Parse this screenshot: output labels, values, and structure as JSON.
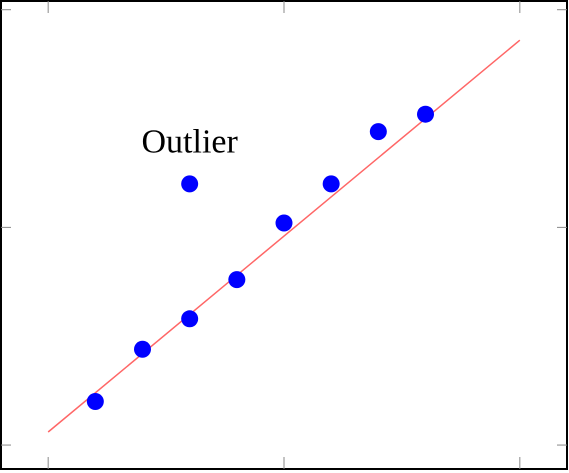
{
  "chart_data": {
    "type": "scatter",
    "series": [
      {
        "color": "#0000ff",
        "x": [
          1,
          2,
          3,
          4,
          5,
          6,
          7,
          8,
          3
        ],
        "values": [
          1.0,
          2.2,
          2.9,
          3.8,
          5.1,
          6.0,
          7.2,
          7.6,
          6.0
        ]
      }
    ],
    "fit_line": {
      "color": "#ff6666",
      "x": [
        0,
        10
      ],
      "values": [
        0.3,
        9.3
      ]
    },
    "annotation": {
      "text": "Outlier",
      "x": 3,
      "y": 6.9
    },
    "xlim": [
      -1.0,
      11.0
    ],
    "ylim": [
      -0.55,
      10.2
    ],
    "xticks": [
      0,
      5,
      10
    ],
    "yticks": [
      0,
      5,
      10
    ]
  }
}
